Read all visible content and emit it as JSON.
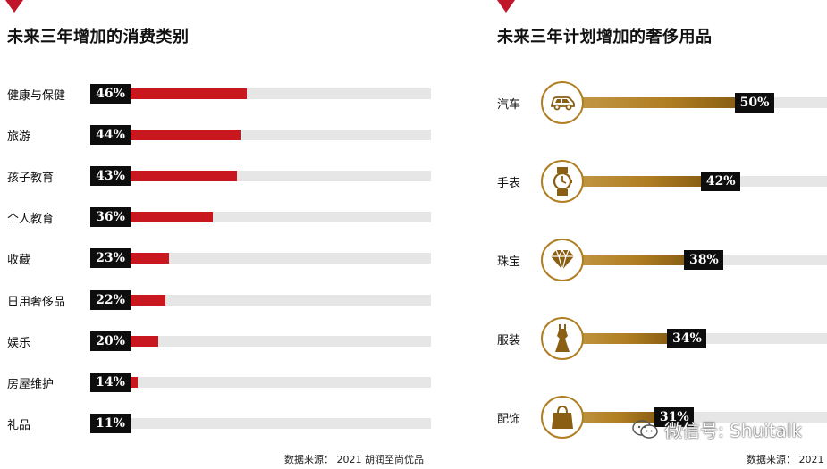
{
  "left_chart_title": "未来三年增加的消费类别",
  "right_chart_title": "未来三年计划增加的奢侈用品",
  "left_source": "数据来源： 2021 胡润至尚优品",
  "right_source": "数据来源： 2021",
  "watermark": "微信号: Shuitalk",
  "colors": {
    "accent_red": "#c8171f",
    "accent_gold": "#b07e22"
  },
  "chart_data": [
    {
      "type": "bar",
      "orientation": "horizontal",
      "title": "未来三年增加的消费类别",
      "categories": [
        "健康与保健",
        "旅游",
        "孩子教育",
        "个人教育",
        "收藏",
        "日用奢侈品",
        "娱乐",
        "房屋维护",
        "礼品"
      ],
      "values": [
        46,
        44,
        43,
        36,
        23,
        22,
        20,
        14,
        11
      ],
      "labels": [
        "46%",
        "44%",
        "43%",
        "36%",
        "23%",
        "22%",
        "20%",
        "14%",
        "11%"
      ],
      "xlim": [
        0,
        100
      ],
      "unit": "%"
    },
    {
      "type": "bar",
      "orientation": "horizontal",
      "title": "未来三年计划增加的奢侈用品",
      "categories": [
        "汽车",
        "手表",
        "珠宝",
        "服装",
        "配饰"
      ],
      "icons": [
        "car-icon",
        "watch-icon",
        "diamond-icon",
        "dress-icon",
        "handbag-icon"
      ],
      "values": [
        50,
        42,
        38,
        34,
        31
      ],
      "labels": [
        "50%",
        "42%",
        "38%",
        "34%",
        "31%"
      ],
      "xlim": [
        0,
        100
      ],
      "unit": "%"
    }
  ]
}
